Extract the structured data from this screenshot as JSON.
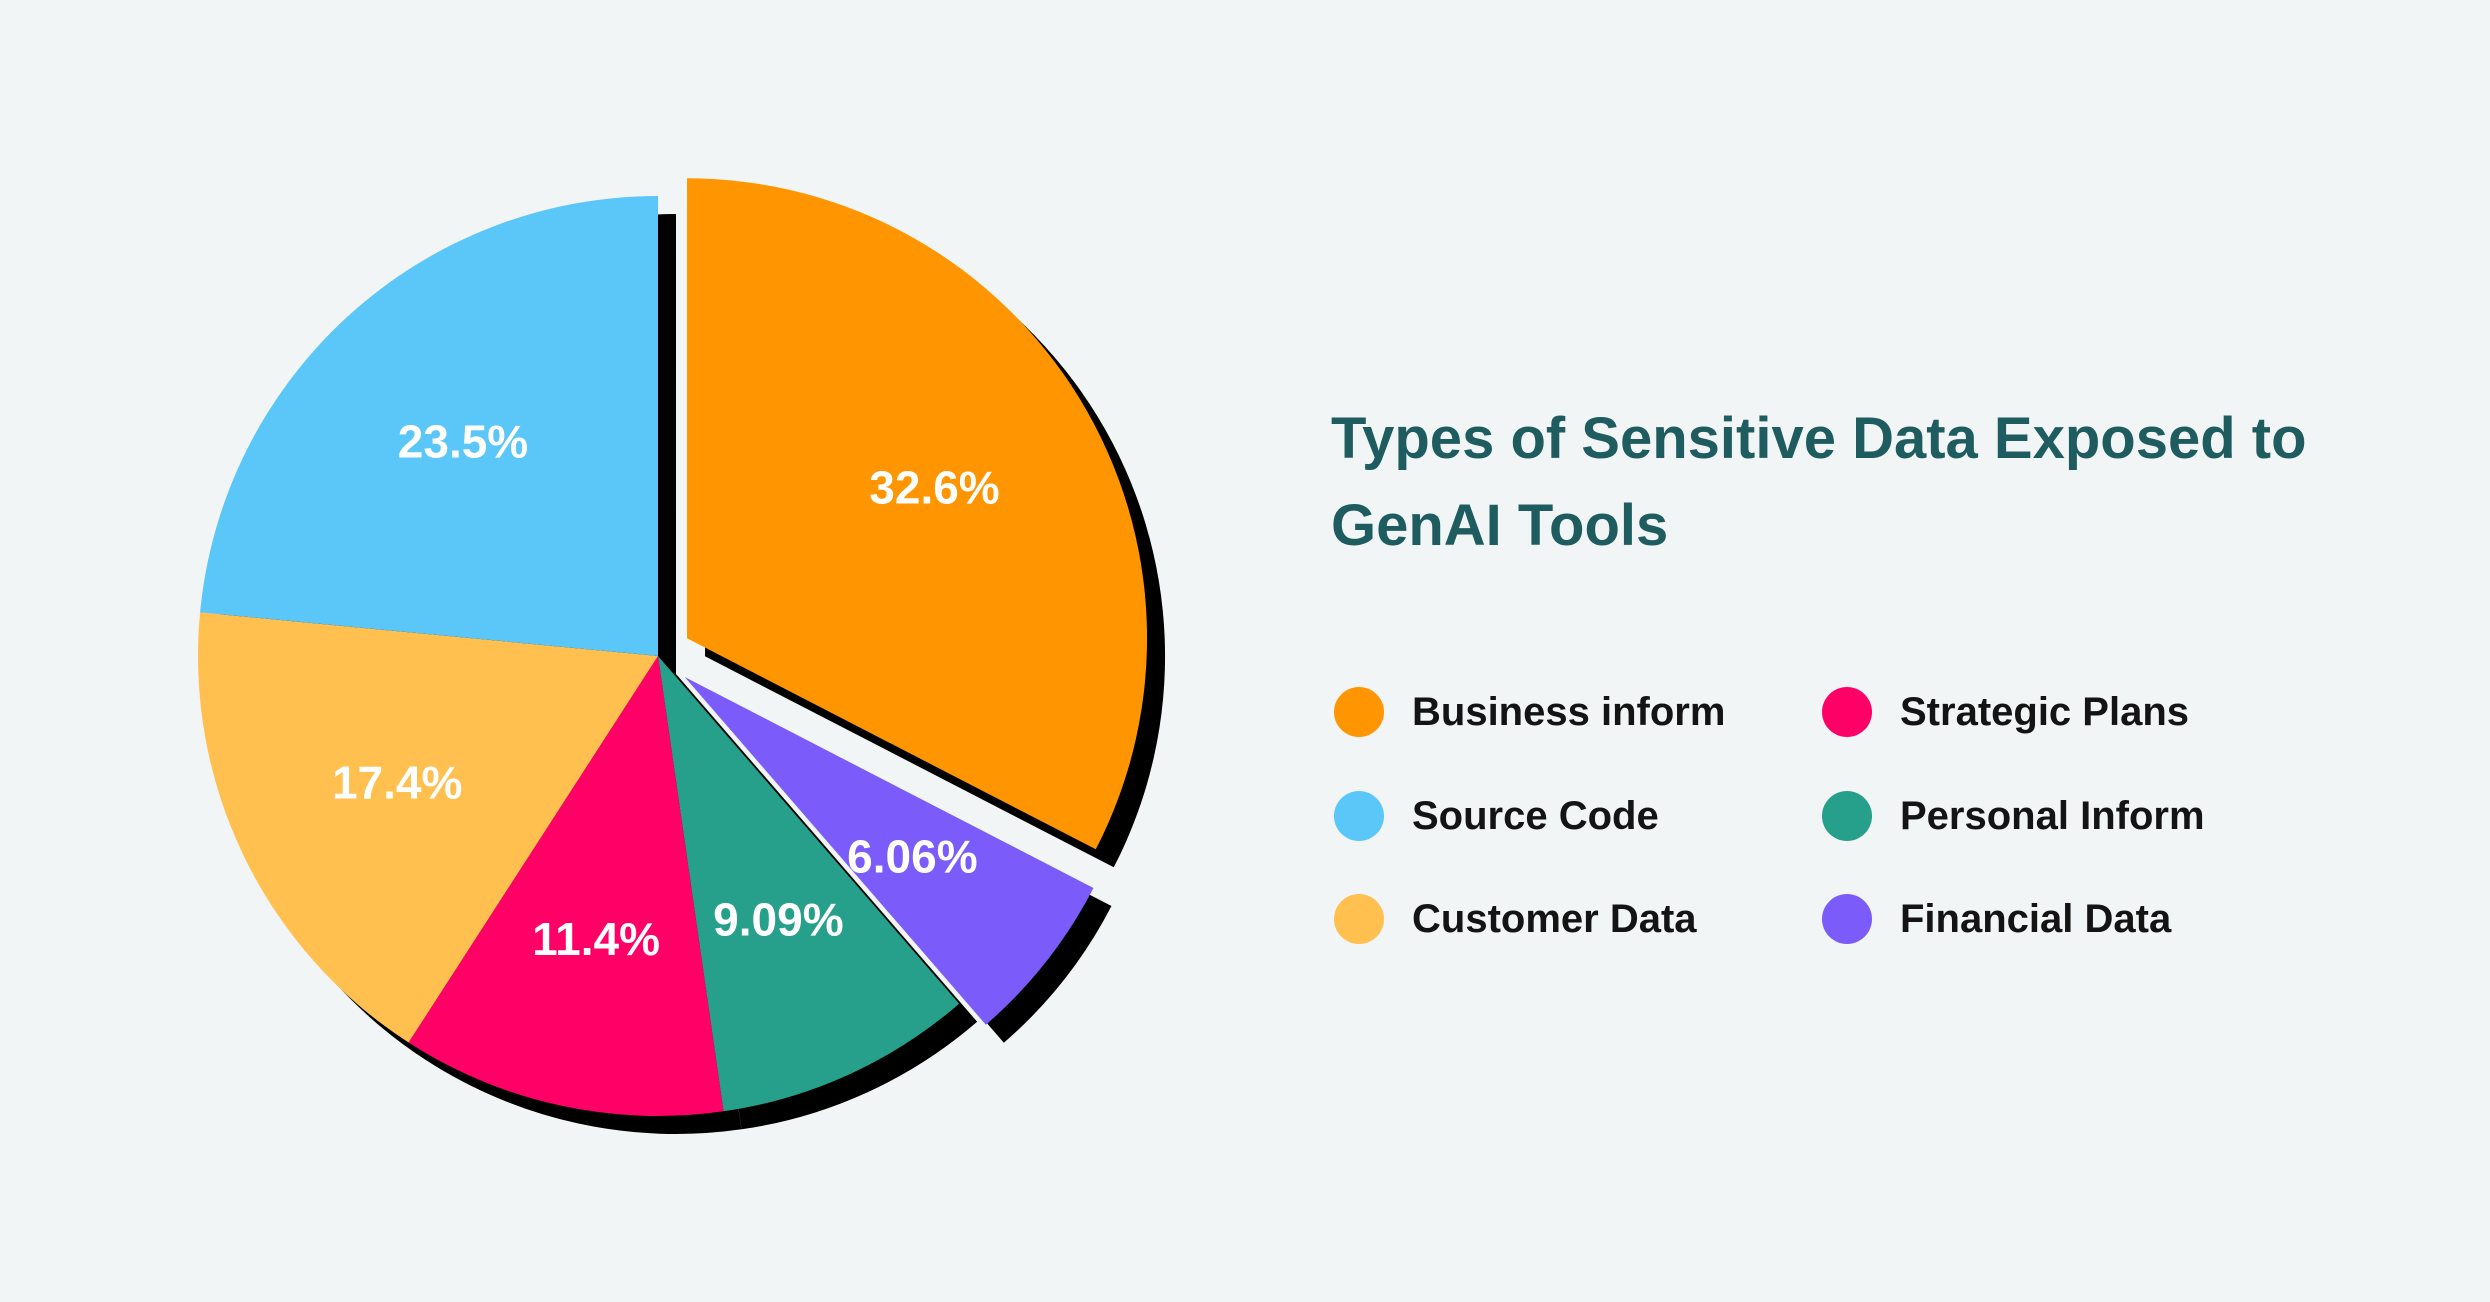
{
  "chart_data": {
    "type": "pie",
    "title": "Types of Sensitive Data Exposed to GenAI Tools",
    "slices": [
      {
        "label": "Business inform",
        "value": 32.6,
        "value_label": "32.6%",
        "color": "#ff9500",
        "exploded": true
      },
      {
        "label": "Financial Data",
        "value": 6.06,
        "value_label": "6.06%",
        "color": "#7b5cfa",
        "exploded": true
      },
      {
        "label": "Personal Inform",
        "value": 9.09,
        "value_label": "9.09%",
        "color": "#26a08a",
        "exploded": false
      },
      {
        "label": "Strategic Plans",
        "value": 11.4,
        "value_label": "11.4%",
        "color": "#ff0066",
        "exploded": false
      },
      {
        "label": "Customer Data",
        "value": 17.4,
        "value_label": "17.4%",
        "color": "#ffc050",
        "exploded": false
      },
      {
        "label": "Source Code",
        "value": 23.5,
        "value_label": "23.5%",
        "color": "#5bc7f8",
        "exploded": false
      }
    ],
    "legend": {
      "placement": "right",
      "columns": 2,
      "order": [
        "Business inform",
        "Source Code",
        "Customer Data",
        "Strategic Plans",
        "Personal Inform",
        "Financial Data"
      ]
    },
    "shadow_color": "#000000"
  },
  "colors": {
    "background": "#f1f5f5",
    "title": "#1f5c5f",
    "legend_text": "#141414",
    "slice_label": "#ffffff"
  }
}
